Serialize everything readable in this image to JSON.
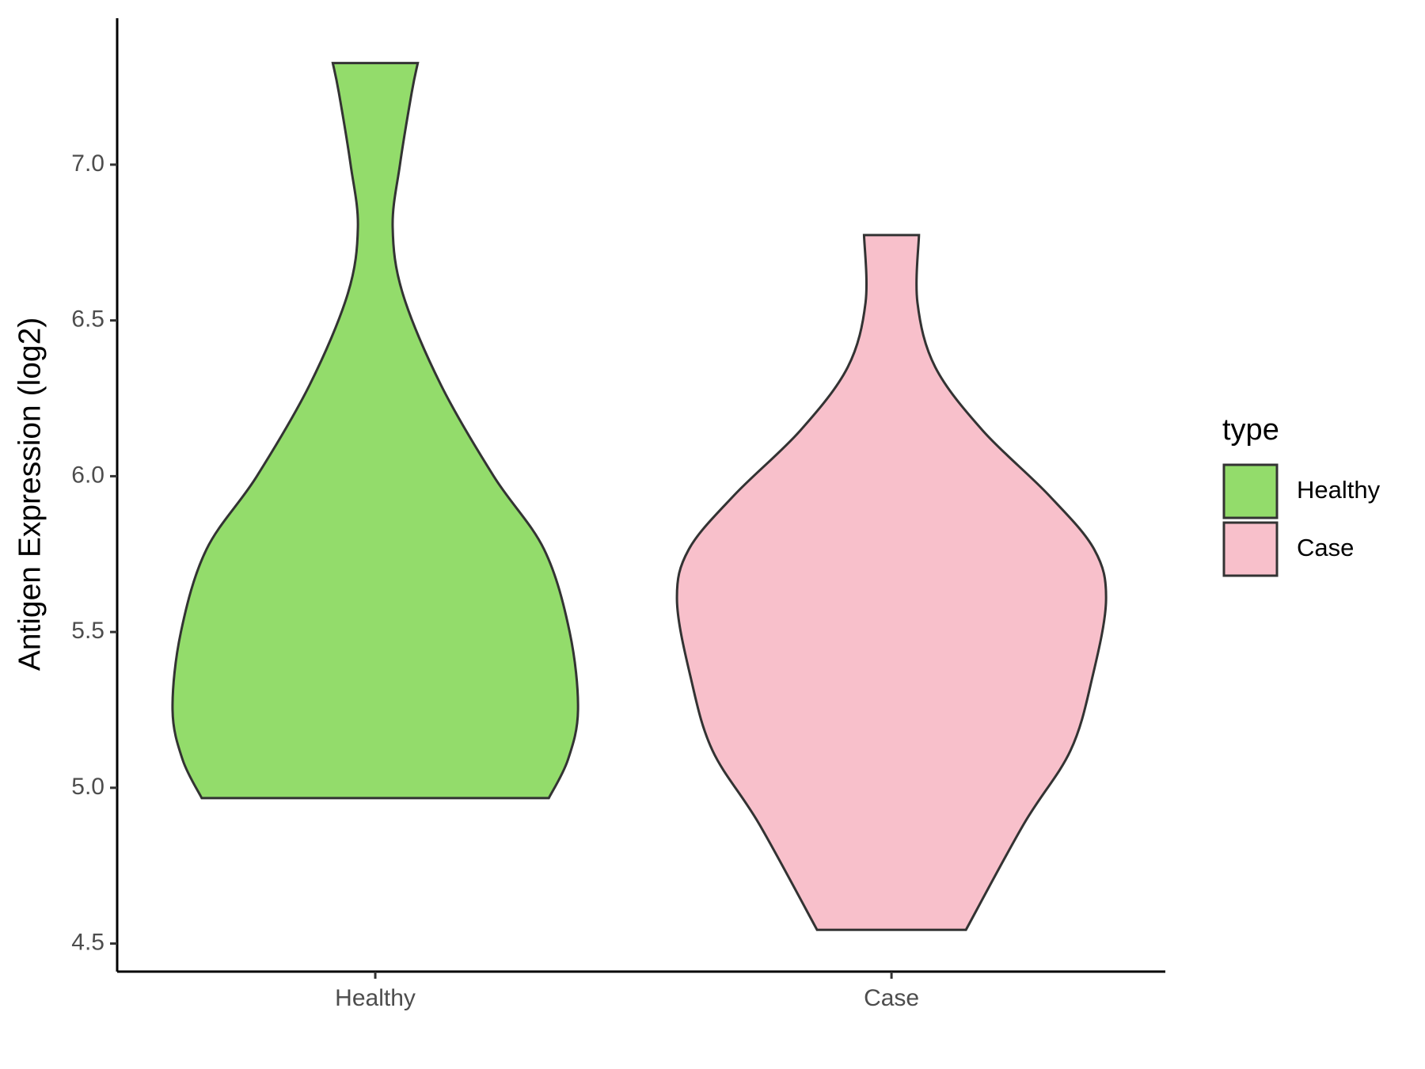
{
  "chart_data": {
    "type": "violin",
    "ylabel": "Antigen Expression (log2)",
    "legend_title": "type",
    "legend": "right",
    "categories": [
      "Healthy",
      "Case"
    ],
    "ylim": [
      4.41,
      7.47
    ],
    "yticks": [
      {
        "value": 4.5,
        "label": "4.5"
      },
      {
        "value": 5,
        "label": "5.0"
      },
      {
        "value": 5.5,
        "label": "5.5"
      },
      {
        "value": 6,
        "label": "6.0"
      },
      {
        "value": 6.5,
        "label": "6.5"
      },
      {
        "value": 7,
        "label": "7.0"
      }
    ],
    "series": [
      {
        "name": "Healthy",
        "color": "#93dc6b",
        "y": [
          7.326,
          7.232,
          7.0,
          6.8,
          6.586,
          6.293,
          5.999,
          5.765,
          5.5,
          5.251,
          5.09,
          4.967
        ],
        "width": [
          0.198,
          0.17,
          0.115,
          0.081,
          0.128,
          0.306,
          0.553,
          0.787,
          0.906,
          0.945,
          0.898,
          0.809
        ]
      },
      {
        "name": "Case",
        "color": "#f8c0cb",
        "y": [
          6.774,
          6.557,
          6.35,
          6.146,
          5.94,
          5.765,
          5.603,
          5.354,
          5.119,
          4.884,
          4.544
        ],
        "width": [
          0.128,
          0.121,
          0.204,
          0.426,
          0.732,
          0.945,
          1.0,
          0.936,
          0.834,
          0.617,
          0.347
        ]
      }
    ]
  }
}
